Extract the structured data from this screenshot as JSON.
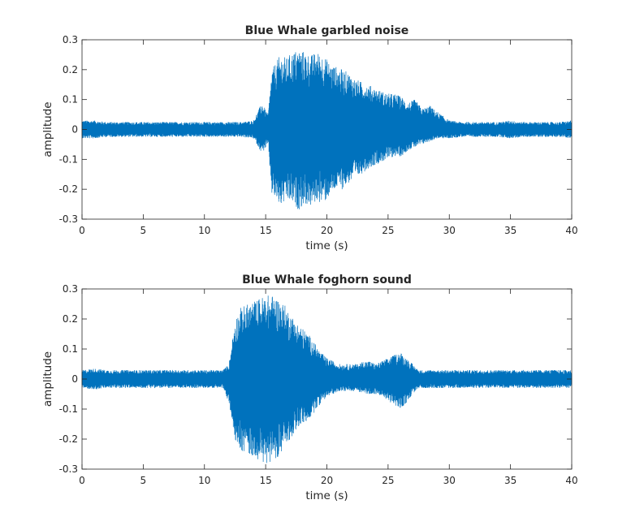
{
  "chart_data": [
    {
      "type": "line",
      "title": "Blue Whale garbled noise",
      "xlabel": "time (s)",
      "ylabel": "amplitude",
      "xlim": [
        0,
        40
      ],
      "ylim": [
        -0.3,
        0.3
      ],
      "xticks": [
        "0",
        "5",
        "10",
        "15",
        "20",
        "25",
        "30",
        "35",
        "40"
      ],
      "yticks": [
        "-0.3",
        "-0.2",
        "-0.1",
        "0",
        "0.1",
        "0.2",
        "0.3"
      ],
      "grid": false,
      "series": [
        {
          "color": "#0072BD",
          "x": [
            0,
            1,
            2,
            3,
            4,
            5,
            6,
            7,
            8,
            9,
            10,
            11,
            12,
            13,
            14,
            14.7,
            15.2,
            15.5,
            16.2,
            16.7,
            17.2,
            17.7,
            18.2,
            18.7,
            19.2,
            19.7,
            20.3,
            20.8,
            21.3,
            21.8,
            22.3,
            22.8,
            23.4,
            23.9,
            24.4,
            25.0,
            25.5,
            26.1,
            26.6,
            27.2,
            27.8,
            28.4,
            29,
            30,
            31,
            32,
            33,
            34,
            35,
            36,
            37,
            38,
            39,
            40
          ],
          "upper": [
            0.03,
            0.03,
            0.025,
            0.025,
            0.025,
            0.025,
            0.025,
            0.025,
            0.025,
            0.025,
            0.025,
            0.025,
            0.025,
            0.025,
            0.03,
            0.09,
            0.05,
            0.2,
            0.25,
            0.24,
            0.26,
            0.27,
            0.26,
            0.25,
            0.26,
            0.25,
            0.22,
            0.21,
            0.2,
            0.19,
            0.17,
            0.16,
            0.15,
            0.14,
            0.13,
            0.12,
            0.12,
            0.11,
            0.09,
            0.1,
            0.07,
            0.08,
            0.06,
            0.03,
            0.025,
            0.025,
            0.025,
            0.025,
            0.03,
            0.025,
            0.025,
            0.025,
            0.025,
            0.03
          ],
          "lower": [
            -0.03,
            -0.03,
            -0.025,
            -0.025,
            -0.025,
            -0.025,
            -0.025,
            -0.025,
            -0.025,
            -0.025,
            -0.025,
            -0.025,
            -0.025,
            -0.025,
            -0.03,
            -0.08,
            -0.05,
            -0.22,
            -0.26,
            -0.24,
            -0.25,
            -0.27,
            -0.25,
            -0.26,
            -0.24,
            -0.25,
            -0.22,
            -0.2,
            -0.2,
            -0.18,
            -0.17,
            -0.15,
            -0.13,
            -0.12,
            -0.11,
            -0.1,
            -0.09,
            -0.09,
            -0.07,
            -0.06,
            -0.05,
            -0.04,
            -0.03,
            -0.03,
            -0.025,
            -0.025,
            -0.025,
            -0.025,
            -0.03,
            -0.025,
            -0.025,
            -0.025,
            -0.025,
            -0.03
          ]
        }
      ]
    },
    {
      "type": "line",
      "title": "Blue Whale foghorn sound",
      "xlabel": "time (s)",
      "ylabel": "amplitude",
      "xlim": [
        0,
        40
      ],
      "ylim": [
        -0.3,
        0.3
      ],
      "xticks": [
        "0",
        "5",
        "10",
        "15",
        "20",
        "25",
        "30",
        "35",
        "40"
      ],
      "yticks": [
        "-0.3",
        "-0.2",
        "-0.1",
        "0",
        "0.1",
        "0.2",
        "0.3"
      ],
      "grid": false,
      "series": [
        {
          "color": "#0072BD",
          "x": [
            0,
            1,
            2,
            3,
            4,
            5,
            6,
            7,
            8,
            9,
            10,
            11,
            11.5,
            12,
            12.5,
            13,
            13.5,
            14,
            14.5,
            15,
            15.5,
            16,
            16.5,
            17,
            17.5,
            18,
            18.5,
            19,
            19.5,
            20,
            20.5,
            21,
            21.5,
            22,
            22.5,
            23,
            23.5,
            24,
            24.5,
            25,
            25.5,
            26,
            26.5,
            27,
            27.5,
            28,
            29,
            30,
            31,
            32,
            33,
            34,
            35,
            36,
            37,
            38,
            39,
            40
          ],
          "upper": [
            0.03,
            0.035,
            0.03,
            0.03,
            0.03,
            0.03,
            0.03,
            0.03,
            0.03,
            0.03,
            0.03,
            0.03,
            0.03,
            0.05,
            0.2,
            0.24,
            0.25,
            0.26,
            0.27,
            0.28,
            0.28,
            0.27,
            0.25,
            0.22,
            0.19,
            0.17,
            0.15,
            0.12,
            0.09,
            0.07,
            0.06,
            0.05,
            0.05,
            0.05,
            0.05,
            0.06,
            0.06,
            0.05,
            0.06,
            0.07,
            0.08,
            0.09,
            0.07,
            0.05,
            0.03,
            0.03,
            0.03,
            0.03,
            0.03,
            0.03,
            0.03,
            0.03,
            0.03,
            0.03,
            0.03,
            0.03,
            0.03,
            0.03
          ],
          "lower": [
            -0.03,
            -0.035,
            -0.03,
            -0.03,
            -0.03,
            -0.03,
            -0.03,
            -0.03,
            -0.03,
            -0.03,
            -0.03,
            -0.03,
            -0.03,
            -0.08,
            -0.2,
            -0.24,
            -0.25,
            -0.26,
            -0.27,
            -0.29,
            -0.27,
            -0.26,
            -0.24,
            -0.2,
            -0.17,
            -0.15,
            -0.14,
            -0.11,
            -0.08,
            -0.06,
            -0.05,
            -0.04,
            -0.04,
            -0.04,
            -0.04,
            -0.05,
            -0.05,
            -0.05,
            -0.06,
            -0.07,
            -0.09,
            -0.1,
            -0.08,
            -0.05,
            -0.03,
            -0.03,
            -0.03,
            -0.03,
            -0.03,
            -0.03,
            -0.03,
            -0.03,
            -0.03,
            -0.03,
            -0.03,
            -0.03,
            -0.03,
            -0.03
          ]
        }
      ]
    }
  ]
}
